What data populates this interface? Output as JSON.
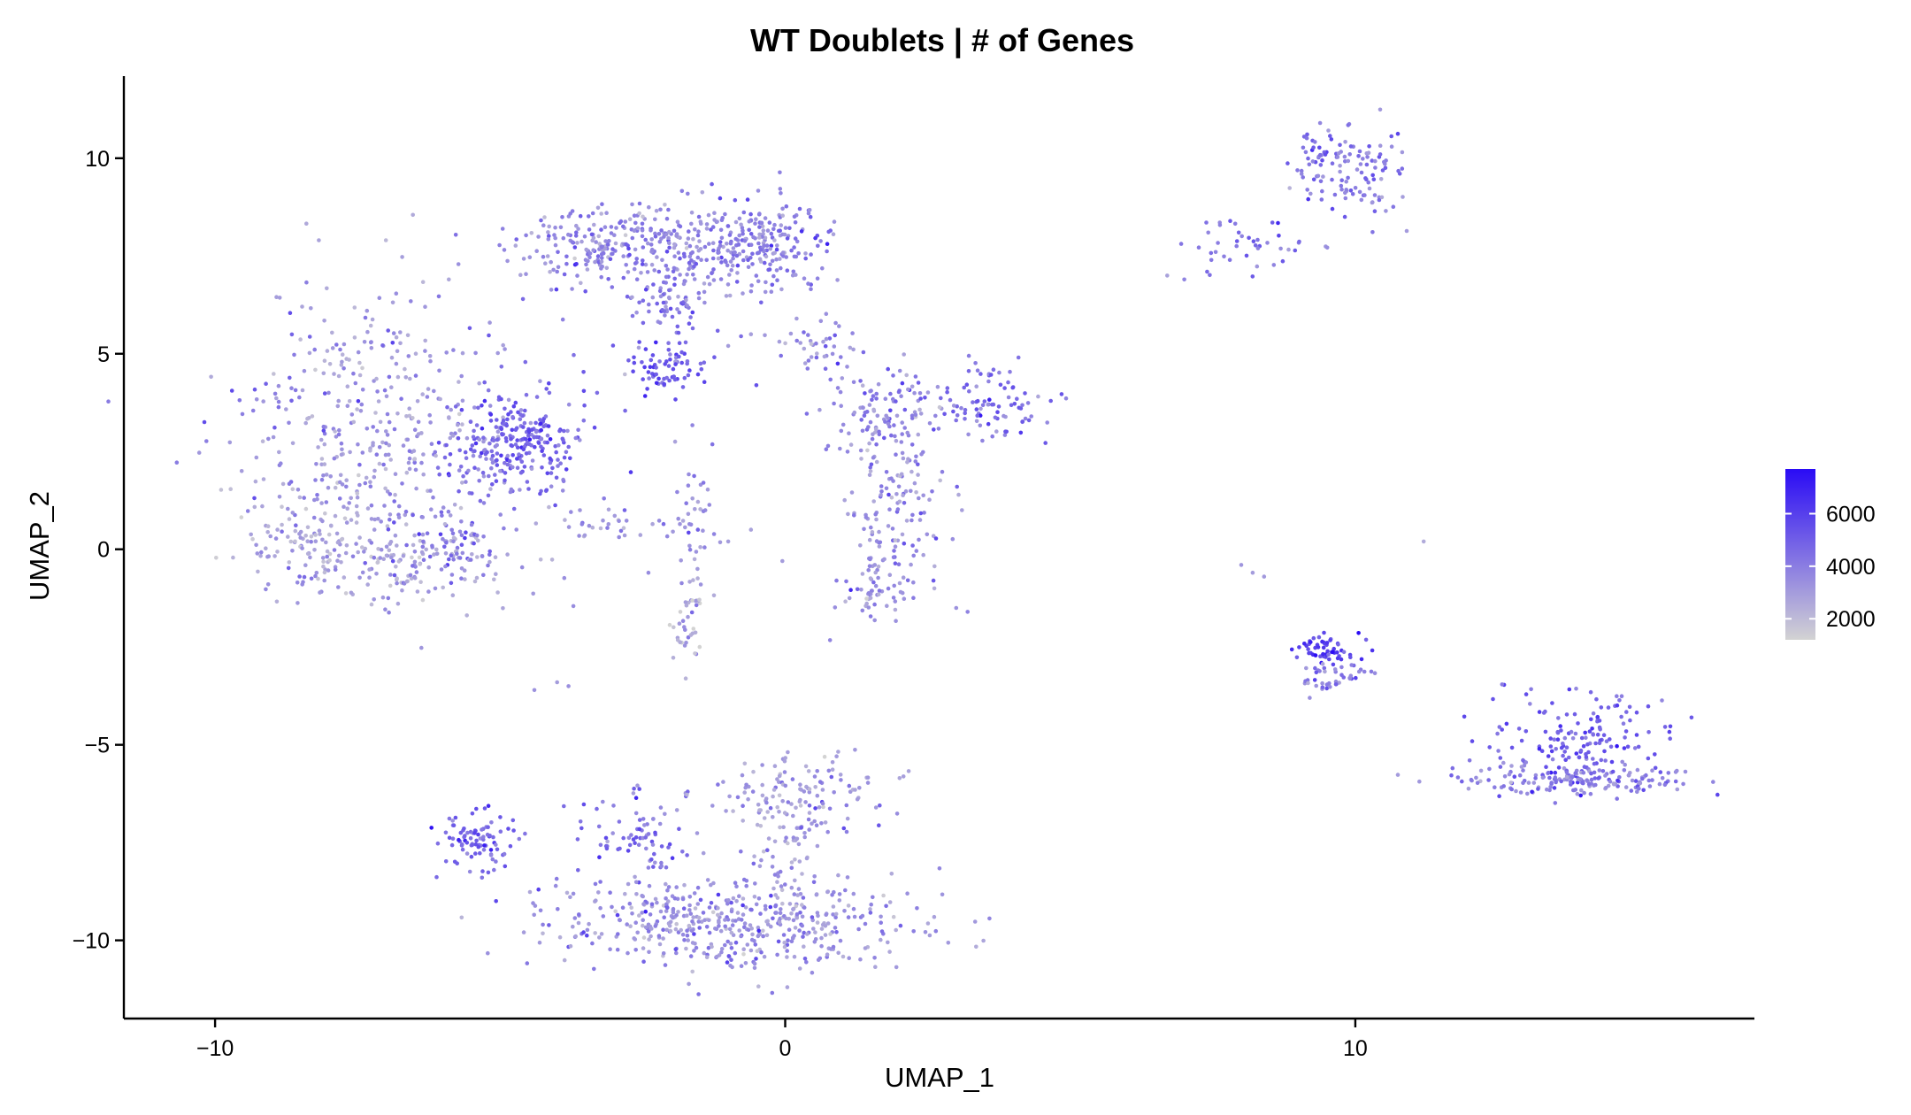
{
  "chart_data": {
    "type": "scatter",
    "title": "WT Doublets | # of Genes",
    "xlabel": "UMAP_1",
    "ylabel": "UMAP_2",
    "xlim": [
      -11.6,
      17.0
    ],
    "ylim": [
      -12.0,
      12.1
    ],
    "xticks": [
      {
        "value": -10,
        "label": "−10"
      },
      {
        "value": 0,
        "label": "0"
      },
      {
        "value": 10,
        "label": "10"
      }
    ],
    "yticks": [
      {
        "value": 10,
        "label": "10"
      },
      {
        "value": 5,
        "label": "5"
      },
      {
        "value": 0,
        "label": "0"
      },
      {
        "value": -5,
        "label": "−5"
      },
      {
        "value": -10,
        "label": "−10"
      }
    ],
    "grid": false,
    "legend_position": "right",
    "color_scale": {
      "low_color": "#d3d3d3",
      "high_color": "#2a0bf5",
      "min": 1200,
      "max": 7700,
      "ticks": [
        {
          "value": 2000,
          "label": "2000"
        },
        {
          "value": 4000,
          "label": "4000"
        },
        {
          "value": 6000,
          "label": "6000"
        }
      ]
    },
    "clusters": [
      {
        "cx": -7.0,
        "cy": 3.0,
        "sx": 1.3,
        "sy": 1.9,
        "n": 420,
        "mean": 3200
      },
      {
        "cx": -8.3,
        "cy": 0.2,
        "sx": 0.6,
        "sy": 0.7,
        "n": 120,
        "mean": 2700
      },
      {
        "cx": -6.5,
        "cy": -0.4,
        "sx": 0.9,
        "sy": 0.5,
        "n": 140,
        "mean": 2900
      },
      {
        "cx": -4.7,
        "cy": 2.7,
        "sx": 0.6,
        "sy": 0.6,
        "n": 260,
        "mean": 4800
      },
      {
        "cx": -5.9,
        "cy": 0.3,
        "sx": 0.3,
        "sy": 0.4,
        "n": 40,
        "mean": 4200
      },
      {
        "cx": -2.7,
        "cy": 7.8,
        "sx": 1.0,
        "sy": 0.5,
        "n": 300,
        "mean": 3600
      },
      {
        "cx": -0.5,
        "cy": 7.8,
        "sx": 0.6,
        "sy": 0.6,
        "n": 220,
        "mean": 3800
      },
      {
        "cx": -2.0,
        "cy": 6.3,
        "sx": 0.4,
        "sy": 0.6,
        "n": 80,
        "mean": 3900
      },
      {
        "cx": -2.0,
        "cy": 4.6,
        "sx": 0.4,
        "sy": 0.3,
        "n": 70,
        "mean": 5300
      },
      {
        "cx": -1.6,
        "cy": 1.2,
        "sx": 0.2,
        "sy": 0.9,
        "n": 40,
        "mean": 3300
      },
      {
        "cx": -1.7,
        "cy": -2.0,
        "sx": 0.15,
        "sy": 0.6,
        "n": 40,
        "mean": 2600
      },
      {
        "cx": -3.1,
        "cy": 0.6,
        "sx": 0.5,
        "sy": 0.2,
        "n": 30,
        "mean": 3200
      },
      {
        "cx": 0.6,
        "cy": 5.3,
        "sx": 0.4,
        "sy": 0.3,
        "n": 40,
        "mean": 3500
      },
      {
        "cx": 1.8,
        "cy": 3.4,
        "sx": 0.5,
        "sy": 0.7,
        "n": 130,
        "mean": 3700
      },
      {
        "cx": 2.0,
        "cy": 1.2,
        "sx": 0.4,
        "sy": 0.8,
        "n": 90,
        "mean": 3500
      },
      {
        "cx": 1.6,
        "cy": -0.9,
        "sx": 0.4,
        "sy": 0.5,
        "n": 70,
        "mean": 3100
      },
      {
        "cx": 3.6,
        "cy": 3.8,
        "sx": 0.5,
        "sy": 0.5,
        "n": 90,
        "mean": 4400
      },
      {
        "cx": 9.4,
        "cy": 10.0,
        "sx": 0.3,
        "sy": 0.5,
        "n": 60,
        "mean": 4300
      },
      {
        "cx": 10.2,
        "cy": 9.6,
        "sx": 0.3,
        "sy": 0.7,
        "n": 70,
        "mean": 3900
      },
      {
        "cx": 8.2,
        "cy": 7.8,
        "sx": 0.6,
        "sy": 0.4,
        "n": 40,
        "mean": 4200
      },
      {
        "cx": 9.5,
        "cy": -2.6,
        "sx": 0.3,
        "sy": 0.2,
        "n": 60,
        "mean": 5600
      },
      {
        "cx": 9.6,
        "cy": -3.3,
        "sx": 0.3,
        "sy": 0.2,
        "n": 40,
        "mean": 3800
      },
      {
        "cx": 13.9,
        "cy": -4.7,
        "sx": 0.7,
        "sy": 0.6,
        "n": 150,
        "mean": 4900
      },
      {
        "cx": 13.9,
        "cy": -5.9,
        "sx": 1.1,
        "sy": 0.2,
        "n": 180,
        "mean": 3900
      },
      {
        "cx": -5.4,
        "cy": -7.5,
        "sx": 0.4,
        "sy": 0.4,
        "n": 90,
        "mean": 4800
      },
      {
        "cx": -2.6,
        "cy": -7.3,
        "sx": 0.6,
        "sy": 0.6,
        "n": 80,
        "mean": 4300
      },
      {
        "cx": -1.0,
        "cy": -9.6,
        "sx": 1.6,
        "sy": 0.6,
        "n": 500,
        "mean": 3300
      },
      {
        "cx": 0.3,
        "cy": -6.2,
        "sx": 0.8,
        "sy": 0.5,
        "n": 120,
        "mean": 3000
      },
      {
        "cx": 0.0,
        "cy": -8.0,
        "sx": 0.3,
        "sy": 1.0,
        "n": 60,
        "mean": 3100
      }
    ],
    "sparse_points": [
      [
        -4.3,
        4.3,
        3000
      ],
      [
        -4.2,
        3.4,
        4200
      ],
      [
        -3.9,
        1.5,
        3500
      ],
      [
        -3.6,
        1.0,
        3200
      ],
      [
        -4.4,
        -3.6,
        3300
      ],
      [
        -4.0,
        -3.4,
        3000
      ],
      [
        -3.8,
        -3.5,
        3400
      ],
      [
        -2.4,
        -0.6,
        3500
      ],
      [
        -1.0,
        0.2,
        3000
      ],
      [
        -0.6,
        0.5,
        2800
      ],
      [
        -0.05,
        -0.3,
        3000
      ],
      [
        1.1,
        0.9,
        2800
      ],
      [
        0.9,
        -0.8,
        4100
      ],
      [
        2.6,
        -0.8,
        5200
      ],
      [
        3.0,
        -1.5,
        3300
      ],
      [
        3.2,
        -1.6,
        3800
      ],
      [
        3.1,
        1.0,
        2900
      ],
      [
        -5.0,
        2.0,
        3200
      ],
      [
        -3.3,
        4.0,
        4500
      ],
      [
        -1.0,
        5.2,
        3000
      ],
      [
        -0.6,
        5.5,
        2900
      ],
      [
        0.2,
        5.9,
        3000
      ],
      [
        -4.6,
        6.4,
        4600
      ],
      [
        -4.0,
        7.1,
        3900
      ],
      [
        -3.5,
        7.4,
        3600
      ],
      [
        7.0,
        6.9,
        3800
      ],
      [
        7.4,
        7.1,
        4600
      ],
      [
        7.8,
        7.4,
        4300
      ],
      [
        6.7,
        7.0,
        2800
      ],
      [
        8.0,
        -0.4,
        3200
      ],
      [
        8.2,
        -0.6,
        3000
      ],
      [
        8.4,
        -0.7,
        3100
      ],
      [
        11.2,
        0.2,
        2500
      ],
      [
        9.2,
        -3.8,
        3400
      ]
    ]
  }
}
